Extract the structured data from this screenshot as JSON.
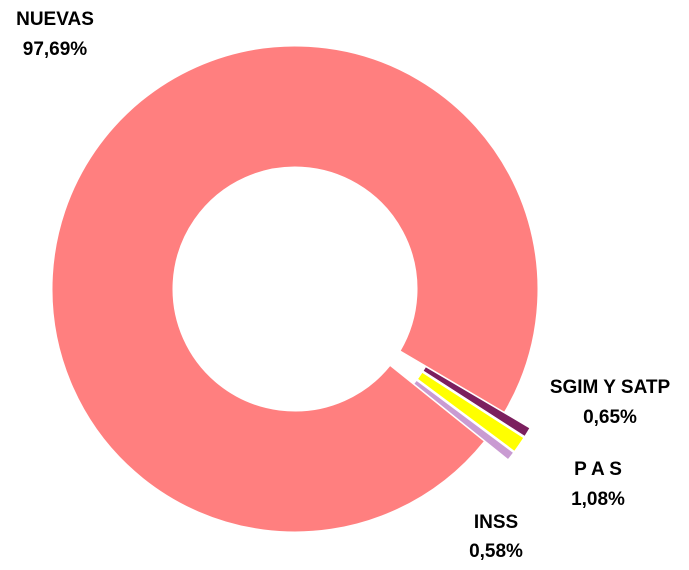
{
  "chart_data": {
    "type": "donut",
    "categories": [
      "NUEVAS",
      "SGIM Y SATP",
      "P A S",
      "INSS"
    ],
    "values": [
      97.69,
      0.65,
      1.08,
      0.58
    ],
    "value_labels": [
      "97,69%",
      "0,65%",
      "1,08%",
      "0,58%"
    ],
    "colors": [
      "#ff7f7f",
      "#7b1f5e",
      "#ffff00",
      "#c99bd2"
    ]
  }
}
